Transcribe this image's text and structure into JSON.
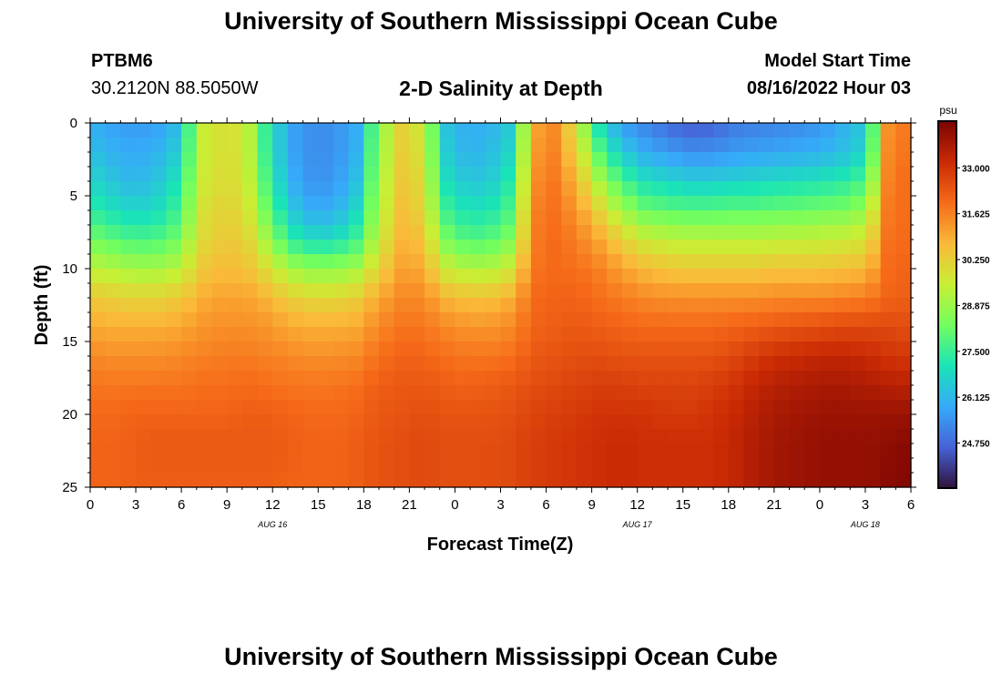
{
  "header": {
    "title": "University of Southern Mississippi Ocean Cube",
    "footer_title": "University of Southern Mississippi Ocean Cube",
    "station_id": "PTBM6",
    "station_coords": "30.2120N  88.5050W",
    "plot_title": "2-D Salinity at Depth",
    "model_start_label": "Model Start Time",
    "model_start_value": "08/16/2022 Hour 03"
  },
  "chart_data": {
    "type": "heatmap",
    "title": "2-D Salinity at Depth",
    "xlabel": "Forecast Time(Z)",
    "ylabel": "Depth (ft)",
    "x_hours_range": [
      0,
      54
    ],
    "x_tick_labels": [
      "0",
      "3",
      "6",
      "9",
      "12",
      "15",
      "18",
      "21",
      "0",
      "3",
      "6",
      "9",
      "12",
      "15",
      "18",
      "21",
      "0",
      "3",
      "6"
    ],
    "date_labels": [
      {
        "hour": 12,
        "text": "AUG 16"
      },
      {
        "hour": 36,
        "text": "AUG 17"
      },
      {
        "hour": 51,
        "text": "AUG 18"
      }
    ],
    "y_range": [
      0,
      25
    ],
    "y_ticks": [
      0,
      5,
      10,
      15,
      20,
      25
    ],
    "colorbar": {
      "unit": "psu",
      "min": 23.4,
      "max": 34.4,
      "tick_values": [
        "33.000",
        "31.625",
        "30.250",
        "28.875",
        "27.500",
        "26.125",
        "24.750"
      ],
      "colors": [
        "#30123b",
        "#4662d7",
        "#36aaf9",
        "#1ae4b6",
        "#72fe5e",
        "#c8ef34",
        "#faba39",
        "#f66b19",
        "#ca2a04",
        "#7a0403"
      ]
    },
    "salinity_depths_ft": [
      0,
      2,
      4,
      6,
      8,
      10,
      12,
      14,
      16,
      18,
      20,
      22,
      25
    ],
    "salinity_rows_psu": [
      [
        26.0,
        25.7,
        25.6,
        25.7,
        26.2,
        29.5,
        29.9,
        29.7,
        27.2,
        25.8,
        25.4,
        25.4,
        25.9,
        28.5,
        30.2,
        29.6,
        26.4,
        25.9,
        26.0,
        26.5,
        31.0,
        31.5,
        29.5,
        26.8,
        25.6,
        25.2,
        24.8,
        24.5,
        24.6,
        25.0,
        25.1,
        25.2,
        25.3,
        25.5,
        26.0,
        26.5,
        31.5,
        31.8
      ],
      [
        26.3,
        26.0,
        25.8,
        26.0,
        26.6,
        29.5,
        29.9,
        29.7,
        27.3,
        25.8,
        25.4,
        25.4,
        26.0,
        28.7,
        30.3,
        29.8,
        26.6,
        26.0,
        26.2,
        26.8,
        31.2,
        31.6,
        30.0,
        27.8,
        26.5,
        25.9,
        25.6,
        25.4,
        25.4,
        25.6,
        25.7,
        25.8,
        25.9,
        26.0,
        26.3,
        26.8,
        31.6,
        31.9
      ],
      [
        26.8,
        26.4,
        26.1,
        26.4,
        27.1,
        29.6,
        30.0,
        29.8,
        27.6,
        26.0,
        25.5,
        25.5,
        26.3,
        28.9,
        30.4,
        30.0,
        27.0,
        26.4,
        26.5,
        27.3,
        31.4,
        31.8,
        30.6,
        29.0,
        27.7,
        27.0,
        26.8,
        26.6,
        26.6,
        26.7,
        26.8,
        26.9,
        27.0,
        27.1,
        27.3,
        27.8,
        31.7,
        32.0
      ],
      [
        27.4,
        27.0,
        26.7,
        26.9,
        27.6,
        29.8,
        30.2,
        30.0,
        28.1,
        26.5,
        25.9,
        25.9,
        26.8,
        29.1,
        30.6,
        30.2,
        27.6,
        27.0,
        27.1,
        27.8,
        31.6,
        31.9,
        31.2,
        30.1,
        28.9,
        28.2,
        28.0,
        27.9,
        27.9,
        28.0,
        28.0,
        28.1,
        28.2,
        28.3,
        28.4,
        28.8,
        31.8,
        32.0
      ],
      [
        28.3,
        28.0,
        27.7,
        27.8,
        28.3,
        30.0,
        30.4,
        30.3,
        28.9,
        27.4,
        26.9,
        26.9,
        27.6,
        29.5,
        30.8,
        30.6,
        28.4,
        27.8,
        27.9,
        28.5,
        31.7,
        32.0,
        31.6,
        31.0,
        30.2,
        29.6,
        29.4,
        29.3,
        29.3,
        29.3,
        29.3,
        29.4,
        29.4,
        29.5,
        29.6,
        29.8,
        31.9,
        32.0
      ],
      [
        29.4,
        29.2,
        29.0,
        29.0,
        29.3,
        30.4,
        30.7,
        30.6,
        29.9,
        29.0,
        28.7,
        28.7,
        29.0,
        30.2,
        31.1,
        31.0,
        29.6,
        29.2,
        29.2,
        29.7,
        31.8,
        32.0,
        31.9,
        31.6,
        31.1,
        30.7,
        30.5,
        30.4,
        30.4,
        30.4,
        30.4,
        30.5,
        30.5,
        30.5,
        30.6,
        30.7,
        32.0,
        32.1
      ],
      [
        30.4,
        30.3,
        30.2,
        30.2,
        30.4,
        30.9,
        31.1,
        31.1,
        30.8,
        30.3,
        30.1,
        30.1,
        30.3,
        31.0,
        31.5,
        31.5,
        30.8,
        30.6,
        30.6,
        30.9,
        32.0,
        32.1,
        32.1,
        31.9,
        31.7,
        31.5,
        31.4,
        31.4,
        31.4,
        31.4,
        31.4,
        31.5,
        31.5,
        31.5,
        31.6,
        31.7,
        32.1,
        32.2
      ],
      [
        31.0,
        30.9,
        30.9,
        30.9,
        31.0,
        31.3,
        31.4,
        31.4,
        31.3,
        31.0,
        30.9,
        30.9,
        31.0,
        31.5,
        31.8,
        31.8,
        31.5,
        31.3,
        31.3,
        31.5,
        32.1,
        32.2,
        32.3,
        32.2,
        32.1,
        32.0,
        32.0,
        32.0,
        32.0,
        32.1,
        32.2,
        32.3,
        32.4,
        32.5,
        32.6,
        32.6,
        32.6,
        32.5
      ],
      [
        31.5,
        31.4,
        31.4,
        31.4,
        31.5,
        31.6,
        31.7,
        31.7,
        31.6,
        31.5,
        31.4,
        31.4,
        31.5,
        31.9,
        32.1,
        32.1,
        31.9,
        31.8,
        31.8,
        31.9,
        32.3,
        32.4,
        32.5,
        32.5,
        32.4,
        32.4,
        32.4,
        32.4,
        32.4,
        32.6,
        32.9,
        33.1,
        33.2,
        33.3,
        33.3,
        33.2,
        33.0,
        32.9
      ],
      [
        31.8,
        31.8,
        31.8,
        31.8,
        31.8,
        31.9,
        31.9,
        32.0,
        31.9,
        31.8,
        31.8,
        31.8,
        31.9,
        32.2,
        32.3,
        32.3,
        32.2,
        32.1,
        32.2,
        32.3,
        32.5,
        32.6,
        32.7,
        32.8,
        32.8,
        32.7,
        32.7,
        32.7,
        32.8,
        33.0,
        33.3,
        33.5,
        33.6,
        33.7,
        33.7,
        33.6,
        33.5,
        33.4
      ],
      [
        32.0,
        32.0,
        32.1,
        32.1,
        32.1,
        32.1,
        32.1,
        32.2,
        32.2,
        32.1,
        32.0,
        32.0,
        32.1,
        32.3,
        32.4,
        32.5,
        32.4,
        32.4,
        32.4,
        32.5,
        32.7,
        32.8,
        32.9,
        33.0,
        33.0,
        33.0,
        32.9,
        32.9,
        33.0,
        33.2,
        33.5,
        33.7,
        33.8,
        33.9,
        33.9,
        33.9,
        33.9,
        33.9
      ],
      [
        32.1,
        32.1,
        32.2,
        32.3,
        32.3,
        32.3,
        32.3,
        32.3,
        32.3,
        32.2,
        32.1,
        32.1,
        32.2,
        32.4,
        32.5,
        32.6,
        32.5,
        32.5,
        32.5,
        32.6,
        32.8,
        32.9,
        33.0,
        33.1,
        33.2,
        33.1,
        33.1,
        33.1,
        33.1,
        33.3,
        33.6,
        33.8,
        33.9,
        34.0,
        34.0,
        34.0,
        34.1,
        34.2
      ],
      [
        32.1,
        32.1,
        32.2,
        32.2,
        32.2,
        32.2,
        32.2,
        32.2,
        32.2,
        32.1,
        32.1,
        32.1,
        32.2,
        32.4,
        32.5,
        32.6,
        32.5,
        32.5,
        32.5,
        32.6,
        32.8,
        32.9,
        33.0,
        33.1,
        33.2,
        33.1,
        33.1,
        33.1,
        33.1,
        33.3,
        33.6,
        33.8,
        33.9,
        34.0,
        34.0,
        34.0,
        34.2,
        34.3
      ]
    ]
  }
}
